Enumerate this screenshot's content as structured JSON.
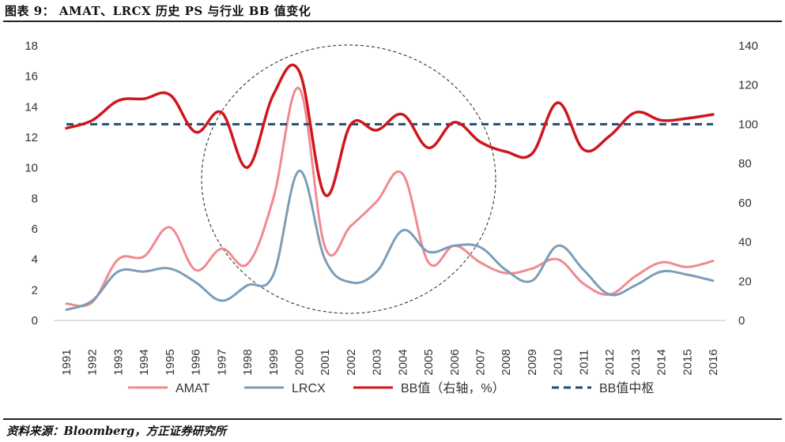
{
  "title": "图表 9： AMAT、LRCX 历史 PS 与行业 BB 值变化",
  "source": "资料来源：Bloomberg，方正证券研究所",
  "chart_data": {
    "type": "line",
    "title": "图表 9： AMAT、LRCX 历史 PS 与行业 BB 值变化",
    "categories": [
      "1991",
      "1992",
      "1993",
      "1994",
      "1995",
      "1996",
      "1997",
      "1998",
      "1999",
      "2000",
      "2001",
      "2002",
      "2003",
      "2004",
      "2005",
      "2006",
      "2007",
      "2008",
      "2009",
      "2010",
      "2011",
      "2012",
      "2013",
      "2014",
      "2015",
      "2016"
    ],
    "y_left": {
      "min": 0,
      "max": 18,
      "ticks": [
        0,
        2,
        4,
        6,
        8,
        10,
        12,
        14,
        16,
        18
      ]
    },
    "y_right": {
      "min": 0,
      "max": 140,
      "ticks": [
        0,
        20,
        40,
        60,
        80,
        100,
        120,
        140
      ]
    },
    "grid": false,
    "legend_position": "bottom",
    "series": [
      {
        "name": "AMAT",
        "axis": "left",
        "color": "#ef8b8e",
        "style": "solid",
        "values": [
          1.1,
          1.2,
          4.0,
          4.2,
          6.1,
          3.3,
          4.7,
          3.7,
          8.0,
          15.2,
          4.8,
          6.2,
          7.8,
          9.6,
          3.8,
          4.9,
          3.8,
          3.1,
          3.4,
          4.0,
          2.4,
          1.7,
          2.9,
          3.8,
          3.5,
          3.9
        ]
      },
      {
        "name": "LRCX",
        "axis": "left",
        "color": "#7c9db8",
        "style": "solid",
        "values": [
          0.7,
          1.3,
          3.2,
          3.2,
          3.4,
          2.5,
          1.3,
          2.3,
          3.0,
          9.8,
          4.0,
          2.5,
          3.2,
          5.9,
          4.5,
          4.9,
          4.8,
          3.3,
          2.6,
          4.9,
          3.3,
          1.7,
          2.3,
          3.2,
          3.0,
          2.6
        ]
      },
      {
        "name": "BB值（右轴，%）",
        "axis": "right",
        "color": "#d0161d",
        "style": "solid",
        "values": [
          98,
          102,
          112,
          113,
          115,
          96,
          106,
          78,
          115,
          127,
          64,
          100,
          97,
          105,
          88,
          101,
          91,
          86,
          85,
          111,
          87,
          94,
          106,
          102,
          103,
          105
        ]
      },
      {
        "name": "BB值中枢",
        "axis": "right",
        "color": "#1f4e79",
        "style": "dashed",
        "values": [
          100,
          100,
          100,
          100,
          100,
          100,
          100,
          100,
          100,
          100,
          100,
          100,
          100,
          100,
          100,
          100,
          100,
          100,
          100,
          100,
          100,
          100,
          100,
          100,
          100,
          100
        ]
      }
    ],
    "annotation": "dashed circle around 1997–2006"
  }
}
